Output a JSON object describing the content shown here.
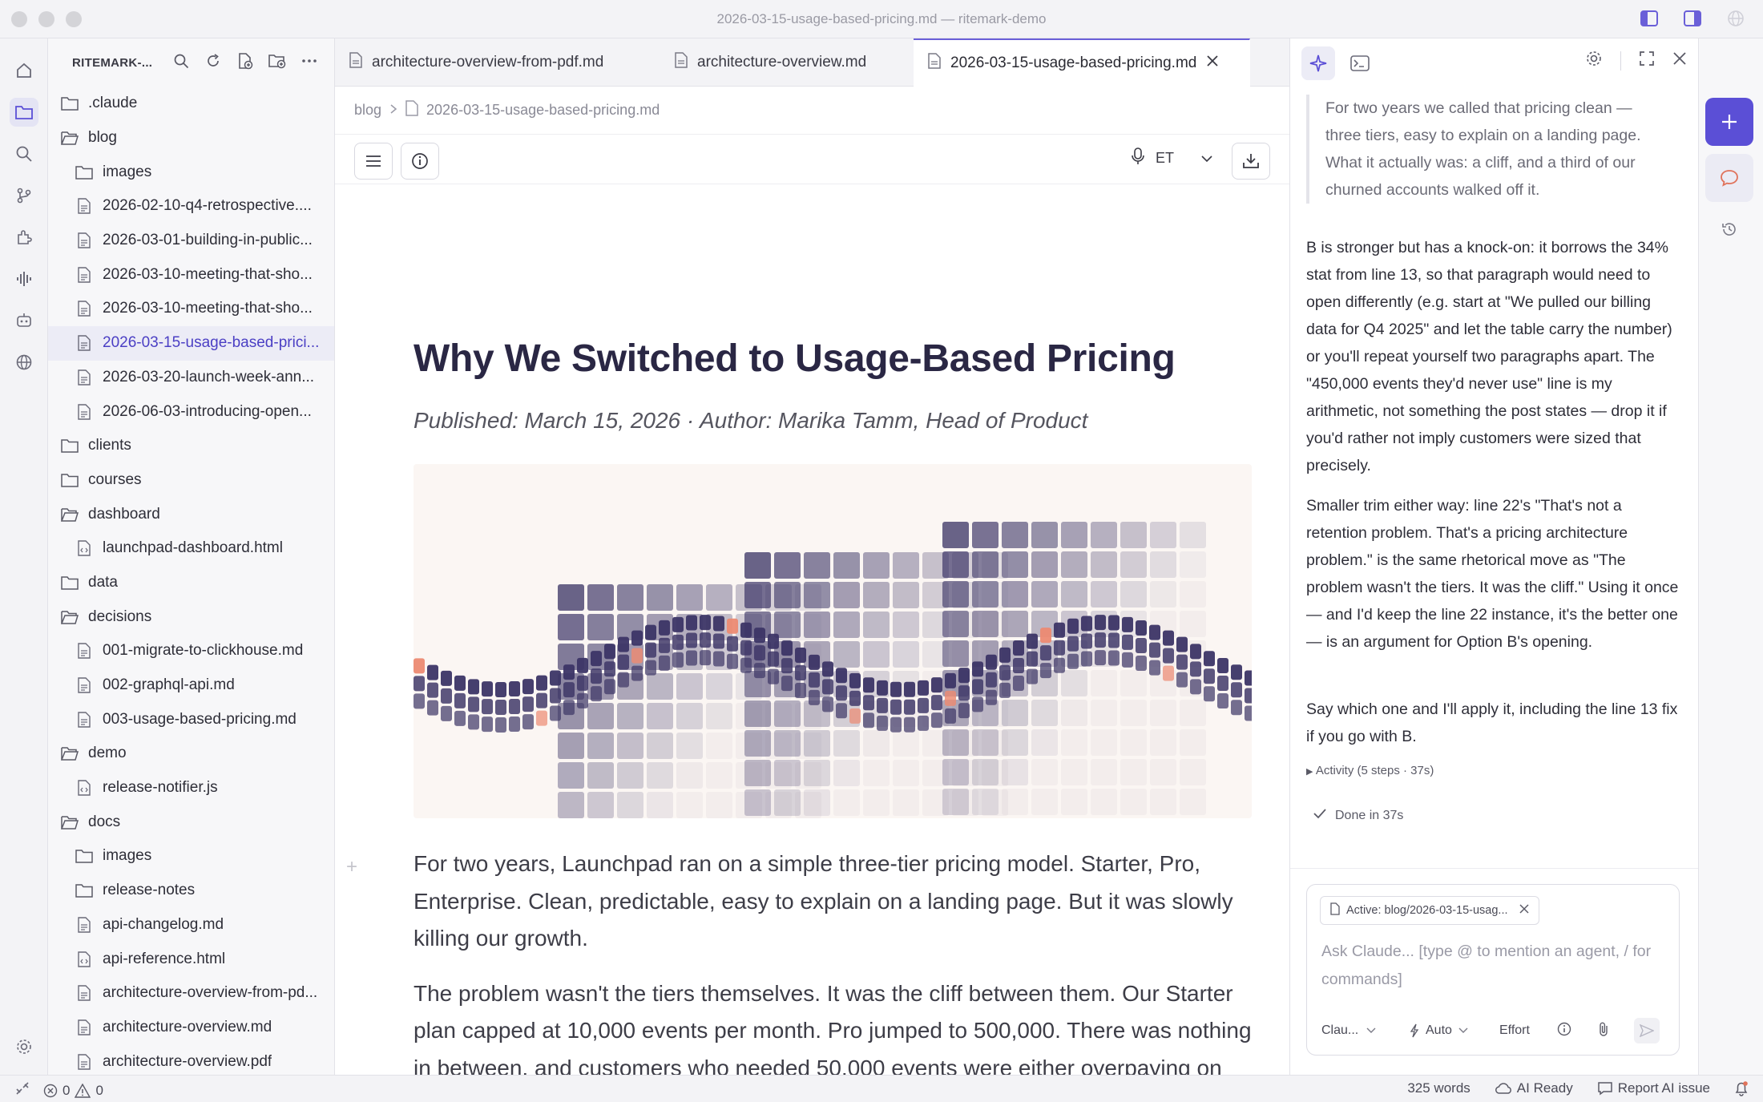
{
  "window": {
    "title": "2026-03-15-usage-based-pricing.md — ritemark-demo"
  },
  "sidebar": {
    "title": "RITEMARK-...",
    "tree": [
      {
        "label": ".claude",
        "kind": "folder",
        "depth": 0
      },
      {
        "label": "blog",
        "kind": "folder-open",
        "depth": 0
      },
      {
        "label": "images",
        "kind": "folder",
        "depth": 1
      },
      {
        "label": "2026-02-10-q4-retrospective....",
        "kind": "file",
        "depth": 1
      },
      {
        "label": "2026-03-01-building-in-public...",
        "kind": "file",
        "depth": 1
      },
      {
        "label": "2026-03-10-meeting-that-sho...",
        "kind": "file",
        "depth": 1
      },
      {
        "label": "2026-03-10-meeting-that-sho...",
        "kind": "file",
        "depth": 1
      },
      {
        "label": "2026-03-15-usage-based-prici...",
        "kind": "file",
        "depth": 1,
        "selected": true
      },
      {
        "label": "2026-03-20-launch-week-ann...",
        "kind": "file",
        "depth": 1
      },
      {
        "label": "2026-06-03-introducing-open...",
        "kind": "file",
        "depth": 1
      },
      {
        "label": "clients",
        "kind": "folder",
        "depth": 0
      },
      {
        "label": "courses",
        "kind": "folder",
        "depth": 0
      },
      {
        "label": "dashboard",
        "kind": "folder-open",
        "depth": 0
      },
      {
        "label": "launchpad-dashboard.html",
        "kind": "code",
        "depth": 1
      },
      {
        "label": "data",
        "kind": "folder",
        "depth": 0
      },
      {
        "label": "decisions",
        "kind": "folder-open",
        "depth": 0
      },
      {
        "label": "001-migrate-to-clickhouse.md",
        "kind": "file",
        "depth": 1
      },
      {
        "label": "002-graphql-api.md",
        "kind": "file",
        "depth": 1
      },
      {
        "label": "003-usage-based-pricing.md",
        "kind": "file",
        "depth": 1
      },
      {
        "label": "demo",
        "kind": "folder-open",
        "depth": 0
      },
      {
        "label": "release-notifier.js",
        "kind": "code",
        "depth": 1
      },
      {
        "label": "docs",
        "kind": "folder-open",
        "depth": 0
      },
      {
        "label": "images",
        "kind": "folder",
        "depth": 1
      },
      {
        "label": "release-notes",
        "kind": "folder",
        "depth": 1
      },
      {
        "label": "api-changelog.md",
        "kind": "file",
        "depth": 1
      },
      {
        "label": "api-reference.html",
        "kind": "code",
        "depth": 1
      },
      {
        "label": "architecture-overview-from-pd...",
        "kind": "file",
        "depth": 1
      },
      {
        "label": "architecture-overview.md",
        "kind": "file",
        "depth": 1
      },
      {
        "label": "architecture-overview.pdf",
        "kind": "file",
        "depth": 1
      }
    ]
  },
  "tabs": [
    {
      "label": "architecture-overview-from-pdf.md",
      "active": false
    },
    {
      "label": "architecture-overview.md",
      "active": false
    },
    {
      "label": "2026-03-15-usage-based-pricing.md",
      "active": true
    }
  ],
  "breadcrumb": {
    "folder": "blog",
    "file": "2026-03-15-usage-based-pricing.md"
  },
  "toolbar": {
    "language": "ET"
  },
  "document": {
    "title": "Why We Switched to Usage-Based Pricing",
    "meta": "Published: March 15, 2026 · Author: Marika Tamm, Head of Product",
    "p1": "For two years, Launchpad ran on a simple three-tier pricing model. Starter, Pro, Enterprise. Clean, predictable, easy to explain on a landing page. But it was slowly killing our growth.",
    "p2": "The problem wasn't the tiers themselves. It was the cliff between them. Our Starter plan capped at 10,000 events per month. Pro jumped to 500,000. There was nothing in between, and customers who needed 50,000 events were either overpaying on"
  },
  "assistant": {
    "quote": "For two years we called that pricing clean — three tiers, easy to explain on a landing page. What it actually was: a cliff, and a third of our churned accounts walked off it.",
    "para1": "B is stronger but has a knock-on: it borrows the 34% stat from line 13, so that paragraph would need to open differently (e.g. start at \"We pulled our billing data for Q4 2025\" and let the table carry the number) or you'll repeat yourself two paragraphs apart. The \"450,000 events they'd never use\" line is my arithmetic, not something the post states — drop it if you'd rather not imply customers were sized that precisely.",
    "para2": "Smaller trim either way: line 22's \"That's not a retention problem. That's a pricing architecture problem.\" is the same rhetorical move as \"The problem wasn't the tiers. It was the cliff.\" Using it once — and I'd keep the line 22 instance, it's the better one — is an argument for Option B's opening.",
    "para3": "Say which one and I'll apply it, including the line 13 fix if you go with B.",
    "activity": "Activity (5 steps · 37s)",
    "done": "Done in 37s",
    "chip": "Active: blog/2026-03-15-usag...",
    "placeholder": "Ask Claude... [type @ to mention an agent, / for commands]",
    "model": "Clau...",
    "mode": "Auto",
    "effort": "Effort"
  },
  "status": {
    "errors": "0",
    "warnings": "0",
    "words": "325 words",
    "ai_ready": "AI Ready",
    "report": "Report AI issue"
  },
  "colors": {
    "accent": "#5b4fd6",
    "hero_dark": "#3c3566",
    "hero_coral": "#ec8a72"
  }
}
